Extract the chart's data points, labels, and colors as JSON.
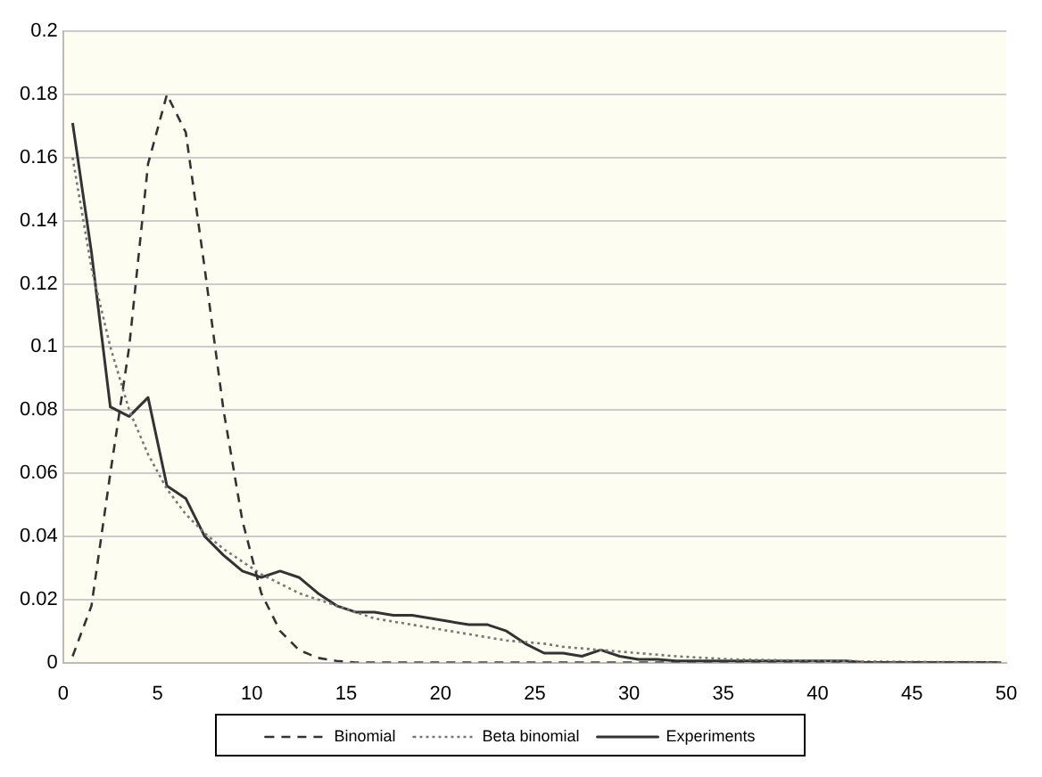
{
  "chart_data": {
    "type": "line",
    "xlim": [
      0,
      50
    ],
    "xticks": [
      0,
      5,
      10,
      15,
      20,
      25,
      30,
      35,
      40,
      45,
      50
    ],
    "ylim": [
      0,
      0.2
    ],
    "yticks": [
      0,
      0.02,
      0.04,
      0.06,
      0.08,
      0.1,
      0.12,
      0.14,
      0.16,
      0.18,
      0.2
    ],
    "grid": "y",
    "legend": "bottom",
    "marker": "none",
    "series": [
      {
        "name": "Binomial",
        "color": "#333333",
        "line_style": "dashed",
        "x": [
          0.5,
          1.5,
          2.5,
          3.5,
          4.5,
          5.5,
          6.5,
          7.5,
          8.5,
          9.5,
          10.5,
          11.5,
          12.5,
          13.5,
          14.5,
          15.5,
          20,
          25,
          30,
          35,
          40,
          45,
          50
        ],
        "values": [
          0.002,
          0.018,
          0.06,
          0.1,
          0.158,
          0.18,
          0.168,
          0.125,
          0.08,
          0.045,
          0.022,
          0.01,
          0.004,
          0.0015,
          0.0005,
          0,
          0,
          0,
          0,
          0,
          0,
          0,
          0
        ]
      },
      {
        "name": "Beta binomial",
        "color": "#777777",
        "line_style": "dotted",
        "x": [
          0.5,
          1.5,
          2.5,
          3.5,
          4.5,
          5.5,
          6.5,
          7.5,
          8.5,
          9.5,
          10.5,
          11.5,
          12.5,
          13.5,
          14.5,
          15.5,
          16.5,
          17.5,
          18.5,
          19.5,
          20.5,
          21.5,
          22.5,
          23.5,
          24.5,
          25.5,
          26.5,
          27.5,
          28.5,
          29.5,
          30.5,
          32.5,
          35.5,
          40.5,
          45.5,
          49.5
        ],
        "values": [
          0.16,
          0.125,
          0.1,
          0.08,
          0.066,
          0.055,
          0.047,
          0.041,
          0.036,
          0.032,
          0.028,
          0.025,
          0.022,
          0.02,
          0.018,
          0.016,
          0.014,
          0.013,
          0.012,
          0.011,
          0.01,
          0.009,
          0.008,
          0.007,
          0.0065,
          0.006,
          0.005,
          0.0045,
          0.004,
          0.0035,
          0.003,
          0.002,
          0.001,
          0.0005,
          0.0002,
          0.0001
        ]
      },
      {
        "name": "Experiments",
        "color": "#333333",
        "line_style": "solid",
        "x": [
          0.5,
          1.5,
          2.5,
          3.5,
          4.5,
          5.5,
          6.5,
          7.5,
          8.5,
          9.5,
          10.5,
          11.5,
          12.5,
          13.5,
          14.5,
          15.5,
          16.5,
          17.5,
          18.5,
          19.5,
          20.5,
          21.5,
          22.5,
          23.5,
          24.5,
          25.5,
          26.5,
          27.5,
          28.5,
          29.5,
          30.5,
          31.5,
          32.5,
          35.5,
          38.5,
          41.5,
          42.5,
          45.5,
          49.5
        ],
        "values": [
          0.171,
          0.13,
          0.081,
          0.078,
          0.084,
          0.056,
          0.052,
          0.04,
          0.034,
          0.029,
          0.027,
          0.029,
          0.027,
          0.022,
          0.018,
          0.016,
          0.016,
          0.015,
          0.015,
          0.014,
          0.013,
          0.012,
          0.012,
          0.01,
          0.006,
          0.003,
          0.003,
          0.002,
          0.004,
          0.002,
          0.001,
          0.001,
          0.0005,
          0.0005,
          0.0005,
          0.0005,
          0,
          0,
          0
        ]
      }
    ]
  }
}
